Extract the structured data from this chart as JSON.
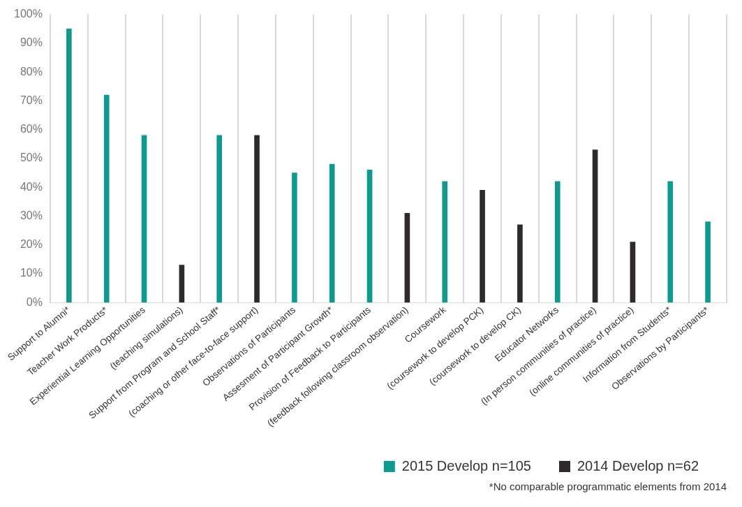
{
  "chart_data": {
    "type": "bar",
    "categories": [
      "Support to Alumni*",
      "Teacher Work Products*",
      "Experiential Learning Opportunities",
      "(teaching simulations)",
      "Support from Program and School Staff*",
      "(coaching or other face-to-face support)",
      "Observations of Participants",
      "Assesment of Participant Growth*",
      "Provision of Feedback to Participants",
      "(feedback following classroom observation)",
      "Coursework",
      "(coursework to develop PCK)",
      "(coursework to develop CK)",
      "Educator Networks",
      "(In person communities of practice)",
      "(online communities of practice)",
      "Information from Students*",
      "Observations by Participants*"
    ],
    "series": [
      {
        "name": "2015 Develop n=105",
        "color": "#0e9a8e",
        "values": [
          95,
          72,
          58,
          null,
          58,
          null,
          45,
          48,
          46,
          null,
          42,
          null,
          null,
          42,
          null,
          null,
          42,
          28
        ]
      },
      {
        "name": "2014 Develop n=62",
        "color": "#2e2a2b",
        "values": [
          null,
          null,
          null,
          13,
          null,
          58,
          null,
          null,
          null,
          31,
          null,
          39,
          27,
          null,
          53,
          21,
          null,
          null
        ]
      }
    ],
    "ylim": [
      0,
      100
    ],
    "yticks": [
      {
        "value": 0,
        "label": "0%"
      },
      {
        "value": 10,
        "label": "10%"
      },
      {
        "value": 20,
        "label": "20%"
      },
      {
        "value": 30,
        "label": "30%"
      },
      {
        "value": 40,
        "label": "40%"
      },
      {
        "value": 50,
        "label": "50%"
      },
      {
        "value": 60,
        "label": "60%"
      },
      {
        "value": 70,
        "label": "70%"
      },
      {
        "value": 80,
        "label": "80%"
      },
      {
        "value": 90,
        "label": "90%"
      },
      {
        "value": 100,
        "label": "100%"
      }
    ],
    "grid": "x",
    "legend": "bottom right",
    "annotations": [
      "*No comparable programmatic elements from 2014"
    ]
  }
}
